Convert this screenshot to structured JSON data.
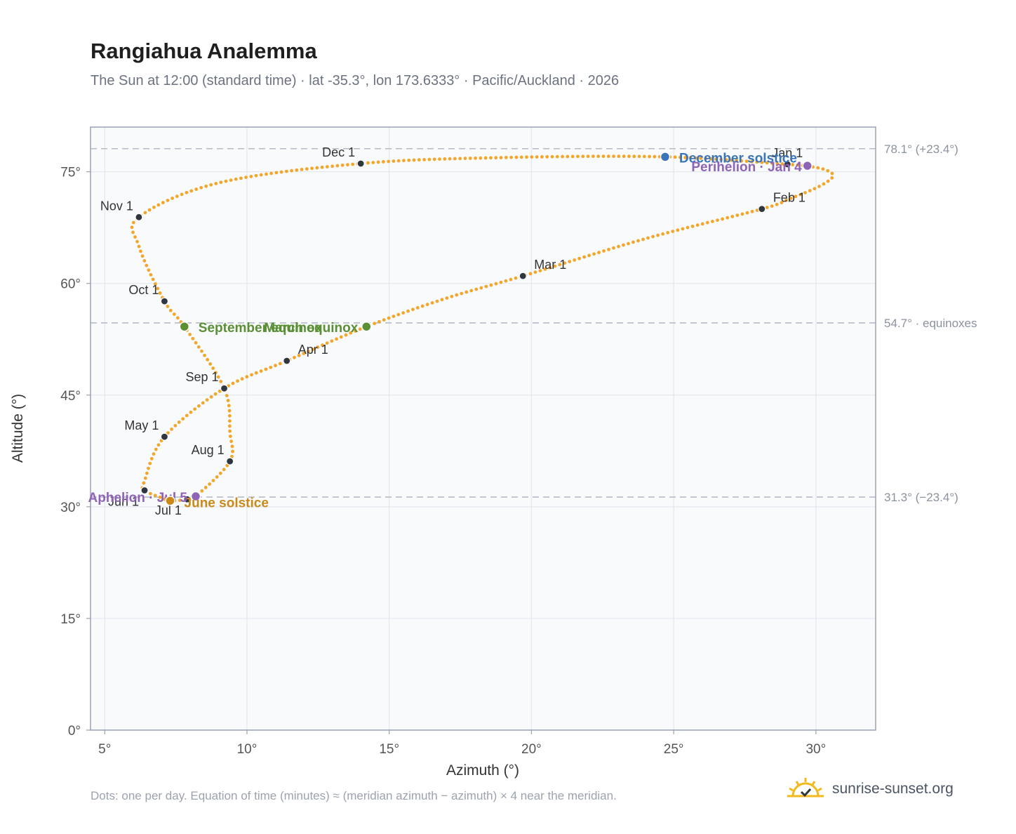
{
  "chart_data": {
    "type": "scatter",
    "title": "Rangiahua Analemma",
    "subtitle": "The Sun at 12:00 (standard time) · lat -35.3°, lon 173.6333° · Pacific/Auckland · 2026",
    "xlabel": "Azimuth (°)",
    "ylabel": "Altitude (°)",
    "xlim": [
      4.5,
      32.1
    ],
    "ylim": [
      0,
      81
    ],
    "x_ticks": [
      5,
      10,
      15,
      20,
      25,
      30
    ],
    "y_ticks": [
      0,
      15,
      30,
      45,
      60,
      75
    ],
    "x_tick_labels": [
      "5°",
      "10°",
      "15°",
      "20°",
      "25°",
      "30°"
    ],
    "y_tick_labels": [
      "0°",
      "15°",
      "30°",
      "45°",
      "60°",
      "75°"
    ],
    "grid": true,
    "reference_lines": [
      {
        "y": 78.1,
        "label": "78.1° (+23.4°)"
      },
      {
        "y": 54.7,
        "label": "54.7° · equinoxes"
      },
      {
        "y": 31.3,
        "label": "31.3° (−23.4°)"
      }
    ],
    "path_color": "#f2a62a",
    "month_color": "#2f3640",
    "path_anchors": [
      [
        29.0,
        76.0
      ],
      [
        29.6,
        75.8
      ],
      [
        30.3,
        75.3
      ],
      [
        30.6,
        74.4
      ],
      [
        30.1,
        73.0
      ],
      [
        29.1,
        71.4
      ],
      [
        28.1,
        70.0
      ],
      [
        24.0,
        66.0
      ],
      [
        19.7,
        61.0
      ],
      [
        17.0,
        58.0
      ],
      [
        14.2,
        54.2
      ],
      [
        11.4,
        49.6
      ],
      [
        9.2,
        45.9
      ],
      [
        7.1,
        39.4
      ],
      [
        6.4,
        33.5
      ],
      [
        6.4,
        32.2
      ],
      [
        7.0,
        31.2
      ],
      [
        7.3,
        30.8
      ],
      [
        7.9,
        31.0
      ],
      [
        8.2,
        31.4
      ],
      [
        9.4,
        36.1
      ],
      [
        9.4,
        40.0
      ],
      [
        9.2,
        45.9
      ],
      [
        7.8,
        54.2
      ],
      [
        7.1,
        57.6
      ],
      [
        6.2,
        65.0
      ],
      [
        6.2,
        68.9
      ],
      [
        9.0,
        73.5
      ],
      [
        14.0,
        76.1
      ],
      [
        19.0,
        76.9
      ],
      [
        24.7,
        77.0
      ],
      [
        29.0,
        76.0
      ]
    ],
    "months": [
      {
        "label": "Jan 1",
        "x": 29.0,
        "y": 76.0,
        "anchor": "middle"
      },
      {
        "label": "Feb 1",
        "x": 28.1,
        "y": 70.0,
        "anchor": "start"
      },
      {
        "label": "Mar 1",
        "x": 19.7,
        "y": 61.0,
        "anchor": "start"
      },
      {
        "label": "Apr 1",
        "x": 11.4,
        "y": 49.6,
        "anchor": "start"
      },
      {
        "label": "May 1",
        "x": 7.1,
        "y": 39.4,
        "anchor": "end"
      },
      {
        "label": "Jun 1",
        "x": 6.4,
        "y": 32.2,
        "anchor": "end"
      },
      {
        "label": "Jul 1",
        "x": 7.9,
        "y": 31.0,
        "anchor": "end"
      },
      {
        "label": "Aug 1",
        "x": 9.4,
        "y": 36.1,
        "anchor": "end"
      },
      {
        "label": "Sep 1",
        "x": 9.2,
        "y": 45.9,
        "anchor": "end"
      },
      {
        "label": "Oct 1",
        "x": 7.1,
        "y": 57.6,
        "anchor": "end"
      },
      {
        "label": "Nov 1",
        "x": 6.2,
        "y": 68.9,
        "anchor": "end"
      },
      {
        "label": "Dec 1",
        "x": 14.0,
        "y": 76.1,
        "anchor": "end"
      }
    ],
    "events": [
      {
        "label": "December solstice",
        "x": 24.7,
        "y": 77.0,
        "color": "#3a73b8",
        "anchor": "start"
      },
      {
        "label": "Perihelion · Jan 4",
        "x": 29.7,
        "y": 75.8,
        "color": "#8f63b5",
        "anchor": "end"
      },
      {
        "label": "March equinox",
        "x": 14.2,
        "y": 54.2,
        "color": "#5a8f34",
        "anchor": "end"
      },
      {
        "label": "September equinox",
        "x": 7.8,
        "y": 54.2,
        "color": "#5a8f34",
        "anchor": "start"
      },
      {
        "label": "Aphelion · Jul 5",
        "x": 8.2,
        "y": 31.4,
        "color": "#8f63b5",
        "anchor": "end"
      },
      {
        "label": "June solstice",
        "x": 7.3,
        "y": 30.8,
        "color": "#c98a19",
        "anchor": "start"
      }
    ]
  },
  "footnote": "Dots: one per day. Equation of time (minutes) ≈ (meridian azimuth − azimuth) × 4 near the meridian.",
  "brand": {
    "text": "sunrise-sunset.org",
    "icon": "sun-logo-icon"
  }
}
